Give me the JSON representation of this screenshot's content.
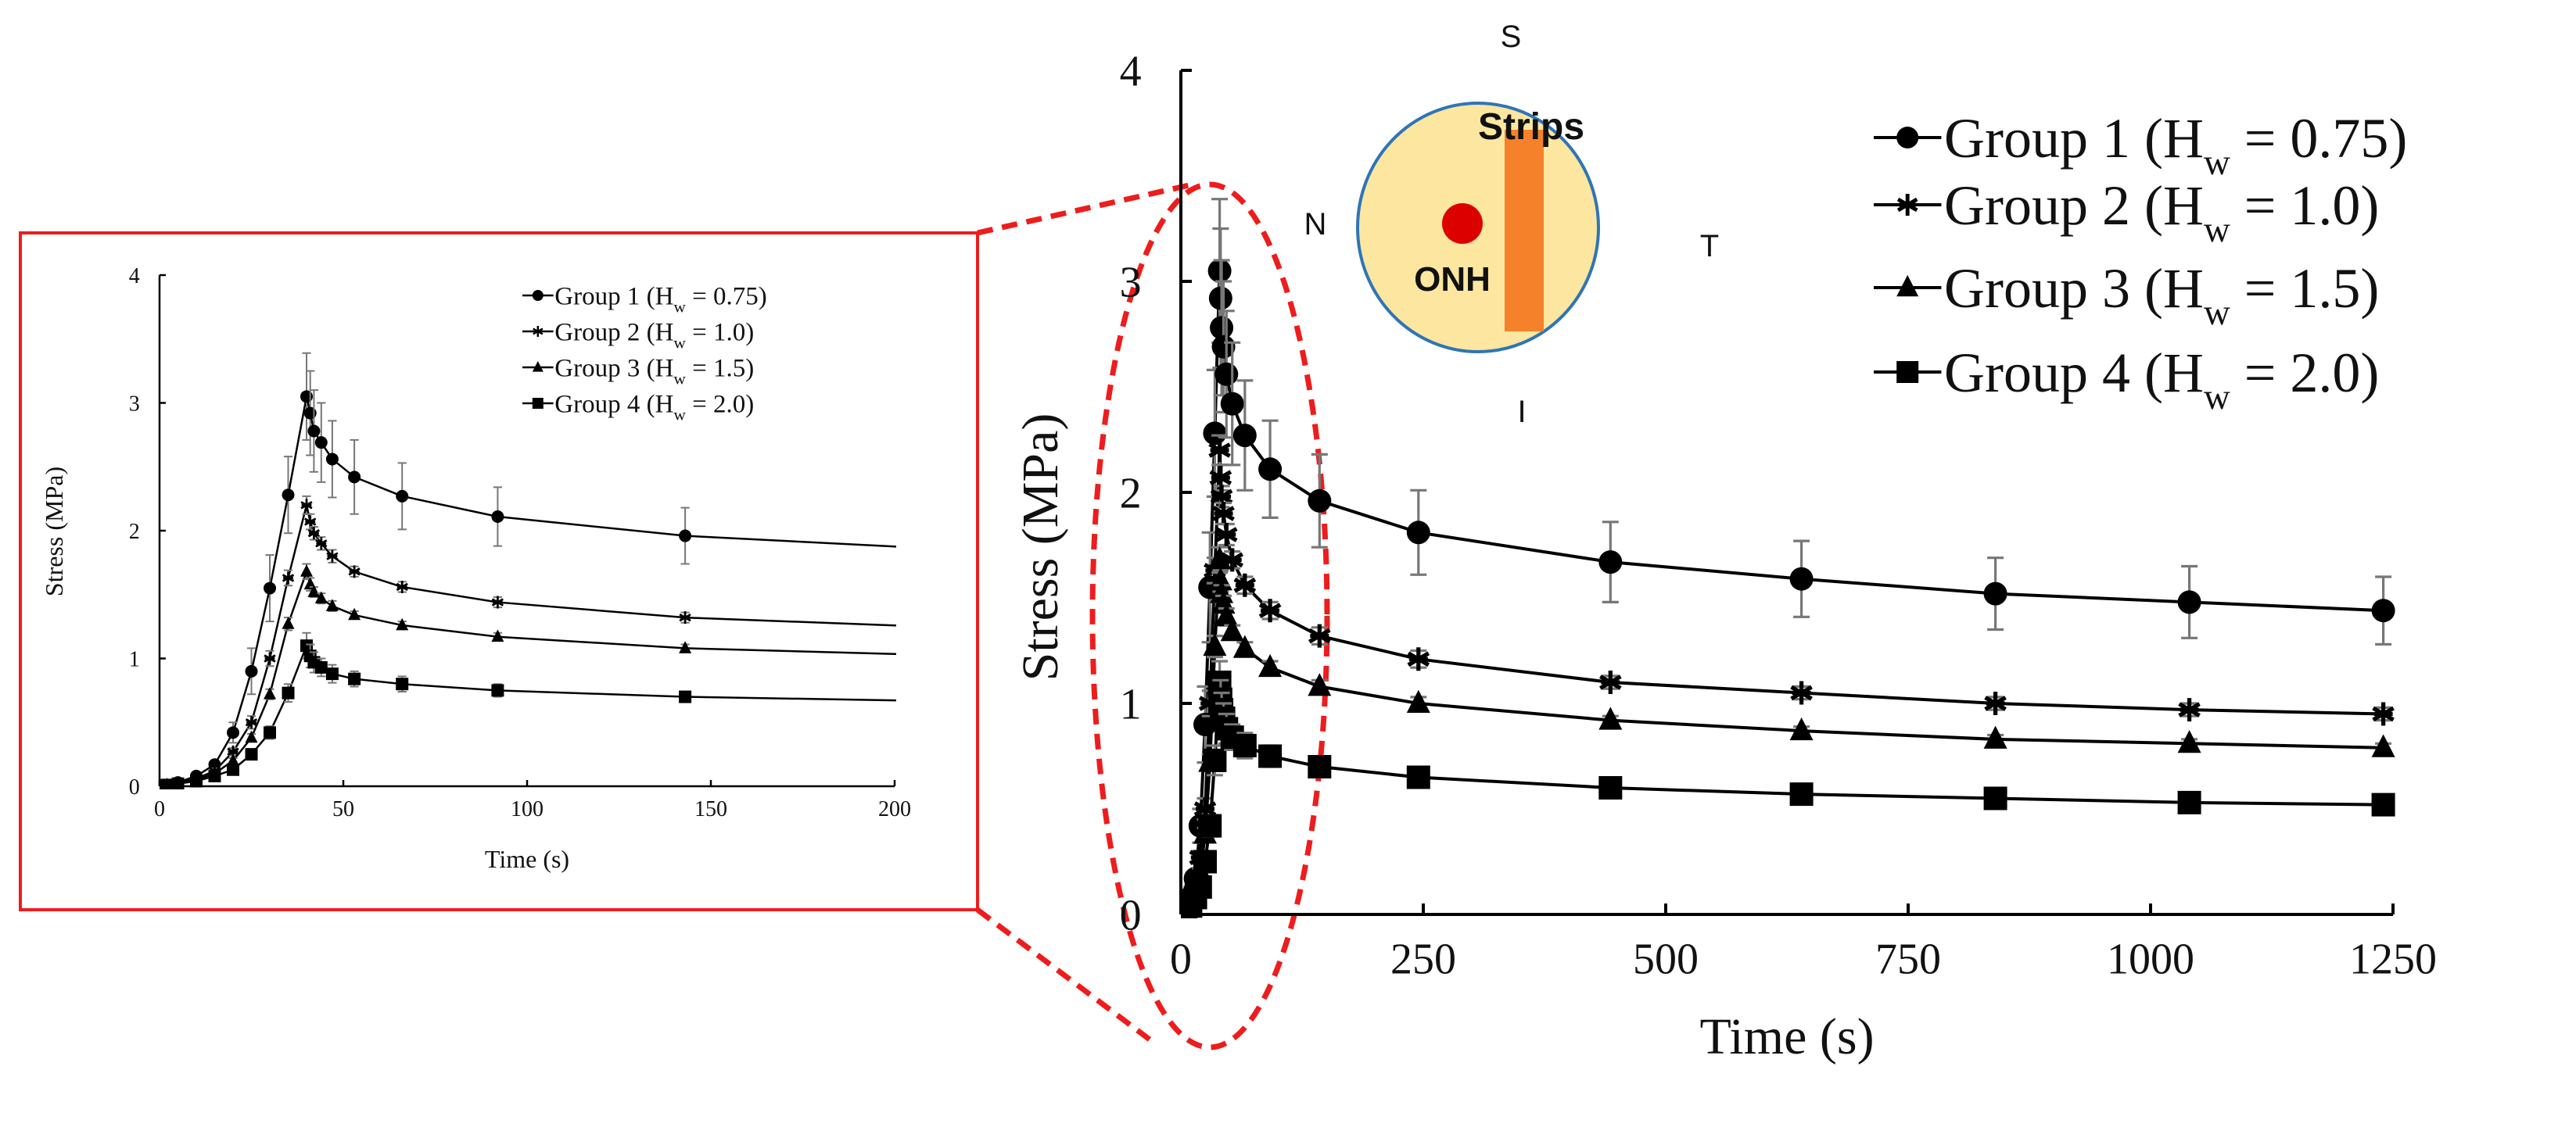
{
  "chart_data": [
    {
      "type": "line",
      "panel": "main",
      "xlabel": "Time (s)",
      "ylabel": "Stress (MPa)",
      "xlim": [
        0,
        1250
      ],
      "ylim": [
        0,
        4
      ],
      "xticks": [
        0,
        250,
        500,
        750,
        1000,
        1250
      ],
      "yticks": [
        0,
        1,
        2,
        3,
        4
      ],
      "grid": false,
      "legend_position": "top-right",
      "x": [
        0,
        2,
        5,
        10,
        15,
        20,
        25,
        30,
        35,
        40,
        41,
        42,
        44,
        47,
        53,
        66,
        92,
        143,
        245,
        443,
        640,
        840,
        1040,
        1240
      ],
      "series": [
        {
          "name": "Group 1",
          "hw": "0.75",
          "marker": "circle",
          "values": [
            0,
            0.01,
            0.03,
            0.08,
            0.17,
            0.42,
            0.9,
            1.55,
            2.28,
            3.05,
            2.92,
            2.78,
            2.69,
            2.56,
            2.42,
            2.27,
            2.11,
            1.96,
            1.81,
            1.67,
            1.59,
            1.52,
            1.48,
            1.44
          ],
          "error": [
            0,
            0,
            0.01,
            0.02,
            0.03,
            0.08,
            0.18,
            0.26,
            0.3,
            0.34,
            0.33,
            0.32,
            0.31,
            0.3,
            0.29,
            0.26,
            0.23,
            0.22,
            0.2,
            0.19,
            0.18,
            0.17,
            0.17,
            0.16
          ]
        },
        {
          "name": "Group 2",
          "hw": "1.0",
          "marker": "asterisk",
          "values": [
            0,
            0.01,
            0.02,
            0.06,
            0.12,
            0.27,
            0.5,
            1.0,
            1.63,
            2.2,
            2.07,
            1.98,
            1.9,
            1.8,
            1.68,
            1.56,
            1.44,
            1.32,
            1.21,
            1.1,
            1.05,
            1.0,
            0.97,
            0.95
          ],
          "error": [
            0,
            0,
            0,
            0.01,
            0.02,
            0.03,
            0.05,
            0.06,
            0.06,
            0.07,
            0.06,
            0.05,
            0.05,
            0.05,
            0.04,
            0.04,
            0.04,
            0.04,
            0.04,
            0.03,
            0.03,
            0.03,
            0.03,
            0.03
          ]
        },
        {
          "name": "Group 3",
          "hw": "1.5",
          "marker": "triangle",
          "values": [
            0,
            0.01,
            0.02,
            0.05,
            0.1,
            0.2,
            0.38,
            0.72,
            1.27,
            1.68,
            1.58,
            1.52,
            1.47,
            1.41,
            1.34,
            1.26,
            1.17,
            1.08,
            1.0,
            0.92,
            0.87,
            0.83,
            0.81,
            0.79
          ],
          "error": [
            0,
            0,
            0,
            0.01,
            0.01,
            0.02,
            0.03,
            0.04,
            0.05,
            0.06,
            0.05,
            0.04,
            0.04,
            0.04,
            0.03,
            0.03,
            0.03,
            0.03,
            0.03,
            0.02,
            0.02,
            0.02,
            0.02,
            0.02
          ]
        },
        {
          "name": "Group 4",
          "hw": "2.0",
          "marker": "square",
          "values": [
            0,
            0.01,
            0.02,
            0.04,
            0.08,
            0.13,
            0.25,
            0.42,
            0.73,
            1.1,
            1.02,
            0.97,
            0.93,
            0.88,
            0.84,
            0.8,
            0.75,
            0.7,
            0.65,
            0.6,
            0.57,
            0.55,
            0.53,
            0.52
          ],
          "error": [
            0,
            0,
            0,
            0.01,
            0.01,
            0.02,
            0.03,
            0.05,
            0.07,
            0.1,
            0.09,
            0.08,
            0.07,
            0.07,
            0.06,
            0.06,
            0.05,
            0.04,
            0.03,
            0.03,
            0.02,
            0.02,
            0.02,
            0.02
          ]
        }
      ]
    },
    {
      "type": "line",
      "panel": "inset-zoom",
      "xlabel": "Time (s)",
      "ylabel": "Stress (MPa)",
      "xlim": [
        0,
        200
      ],
      "ylim": [
        0,
        4
      ],
      "xticks": [
        0,
        50,
        100,
        150,
        200
      ],
      "yticks": [
        0,
        1,
        2,
        3,
        4
      ],
      "grid": false,
      "legend_position": "top-right",
      "same_series_as": "main"
    }
  ],
  "legend_labels": [
    {
      "group": "Group 1",
      "h": "H",
      "sub": "w",
      "value": "= 0.75)"
    },
    {
      "group": "Group 2",
      "h": "H",
      "sub": "w",
      "value": "= 1.0)"
    },
    {
      "group": "Group 3",
      "h": "H",
      "sub": "w",
      "value": "= 1.5)"
    },
    {
      "group": "Group 4",
      "h": "H",
      "sub": "w",
      "value": "= 2.0)"
    }
  ],
  "diagram": {
    "strips_label": "Strips",
    "onh_label": "ONH",
    "directions": {
      "superior": "S",
      "inferior": "I",
      "nasal": "N",
      "temporal": "T"
    },
    "colors": {
      "eye_fill": "#fde6a0",
      "eye_stroke": "#2e75b6",
      "strip": "#f5822a",
      "onh": "#dd0000"
    }
  },
  "colors": {
    "highlight": "#ee1c1c",
    "series": "#000000",
    "error_bars": "#777777"
  }
}
